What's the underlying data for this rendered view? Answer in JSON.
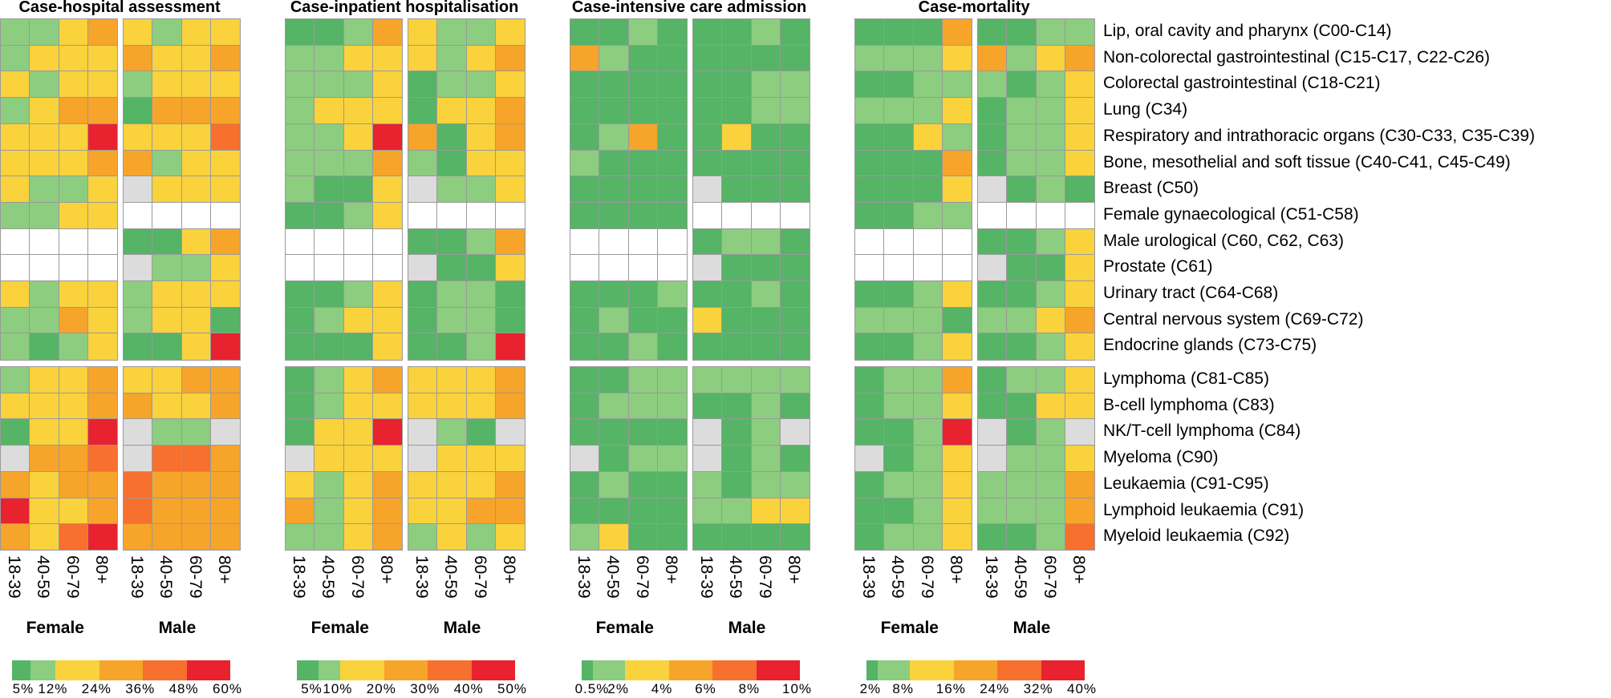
{
  "chart_data": {
    "type": "heatmap",
    "row_labels": [
      "Lip, oral cavity and pharynx (C00-C14)",
      "Non-colorectal gastrointestinal (C15-C17, C22-C26)",
      "Colorectal gastrointestinal (C18-C21)",
      "Lung (C34)",
      "Respiratory and intrathoracic organs (C30-C33, C35-C39)",
      "Bone, mesothelial and soft tissue (C40-C41, C45-C49)",
      "Breast (C50)",
      "Female gynaecological (C51-C58)",
      "Male urological (C60, C62, C63)",
      "Prostate (C61)",
      "Urinary tract (C64-C68)",
      "Central nervous system (C69-C72)",
      "Endocrine glands (C73-C75)",
      "Lymphoma (C81-C85)",
      "B-cell lymphoma (C83)",
      "NK/T-cell lymphoma (C84)",
      "Myeloma (C90)",
      "Leukaemia (C91-C95)",
      "Lymphoid leukaemia (C91)",
      "Myeloid leukaemia (C92)"
    ],
    "row_groups": [
      13,
      7
    ],
    "age_groups": [
      "18-39",
      "40-59",
      "60-79",
      "80+"
    ],
    "sexes": [
      "Female",
      "Male"
    ],
    "cell_code_legend": {
      "1": "lowest bin",
      "2": "second bin",
      "3": "third bin",
      "4": "fourth bin",
      "5": "fifth bin",
      "6": "highest bin",
      "g": "no data (grey)",
      "w": "not applicable (white)"
    },
    "bin_colors": [
      "#55b466",
      "#8ccd7f",
      "#f9d23c",
      "#f6a42a",
      "#f7702e",
      "#e8222f"
    ],
    "na_color": "#dcdcdc",
    "blank_color": "#ffffff",
    "panels": [
      {
        "title": "Case-hospital assessment",
        "legend_ticks": [
          "5%",
          "12%",
          "24%",
          "36%",
          "48%",
          "60%"
        ],
        "legend_breaks": [
          0,
          5,
          12,
          24,
          36,
          48,
          60
        ],
        "female": [
          "2234",
          "2333",
          "3233",
          "2344",
          "3336",
          "3334",
          "3223",
          "2233",
          "wwww",
          "wwww",
          "3233",
          "2243",
          "2123",
          "2334",
          "3334",
          "1336",
          "g445",
          "4344",
          "6334",
          "4356"
        ],
        "male": [
          "3233",
          "4334",
          "2333",
          "1444",
          "3335",
          "4233",
          "g333",
          "wwww",
          "1134",
          "g223",
          "2333",
          "2331",
          "1136",
          "3344",
          "4334",
          "g22g",
          "g554",
          "5444",
          "5444",
          "4444"
        ]
      },
      {
        "title": "Case-inpatient hospitalisation",
        "legend_ticks": [
          "5%",
          "10%",
          "20%",
          "30%",
          "40%",
          "50%"
        ],
        "legend_breaks": [
          0,
          5,
          10,
          20,
          30,
          40,
          50
        ],
        "female": [
          "1124",
          "2233",
          "2223",
          "2333",
          "2236",
          "2224",
          "2113",
          "1123",
          "wwww",
          "wwww",
          "1123",
          "1233",
          "1113",
          "1234",
          "1233",
          "1336",
          "g333",
          "3234",
          "4234",
          "2234"
        ],
        "male": [
          "3223",
          "3234",
          "1223",
          "1334",
          "4134",
          "2133",
          "g223",
          "wwww",
          "1124",
          "g113",
          "1221",
          "1221",
          "1126",
          "3334",
          "3334",
          "g21g",
          "g333",
          "3334",
          "3344",
          "2323"
        ]
      },
      {
        "title": "Case-intensive care admission",
        "legend_ticks": [
          "0.5%",
          "2%",
          "4%",
          "6%",
          "8%",
          "10%"
        ],
        "legend_breaks": [
          0,
          0.5,
          2,
          4,
          6,
          8,
          10
        ],
        "female": [
          "1121",
          "4211",
          "1111",
          "1111",
          "1241",
          "2111",
          "1111",
          "1111",
          "wwww",
          "wwww",
          "1112",
          "1211",
          "1121",
          "1122",
          "1222",
          "1111",
          "g122",
          "1211",
          "1111",
          "2311"
        ],
        "male": [
          "1121",
          "1111",
          "1122",
          "1122",
          "1311",
          "1111",
          "g111",
          "wwww",
          "1221",
          "g111",
          "1121",
          "3111",
          "1111",
          "2222",
          "1121",
          "g12g",
          "g121",
          "2122",
          "2233",
          "1111"
        ]
      },
      {
        "title": "Case-mortality",
        "legend_ticks": [
          "2%",
          "8%",
          "16%",
          "24%",
          "32%",
          "40%"
        ],
        "legend_breaks": [
          0,
          2,
          8,
          16,
          24,
          32,
          40
        ],
        "female": [
          "1114",
          "2223",
          "1122",
          "2223",
          "1132",
          "1114",
          "1113",
          "1122",
          "wwww",
          "wwww",
          "1123",
          "2221",
          "1123",
          "1224",
          "1223",
          "1126",
          "g123",
          "1223",
          "1123",
          "1223"
        ],
        "male": [
          "1122",
          "4234",
          "2123",
          "1223",
          "1223",
          "1223",
          "g121",
          "wwww",
          "1123",
          "g113",
          "1123",
          "2234",
          "1123",
          "1223",
          "1133",
          "g12g",
          "g223",
          "2224",
          "2224",
          "1125"
        ]
      }
    ]
  }
}
